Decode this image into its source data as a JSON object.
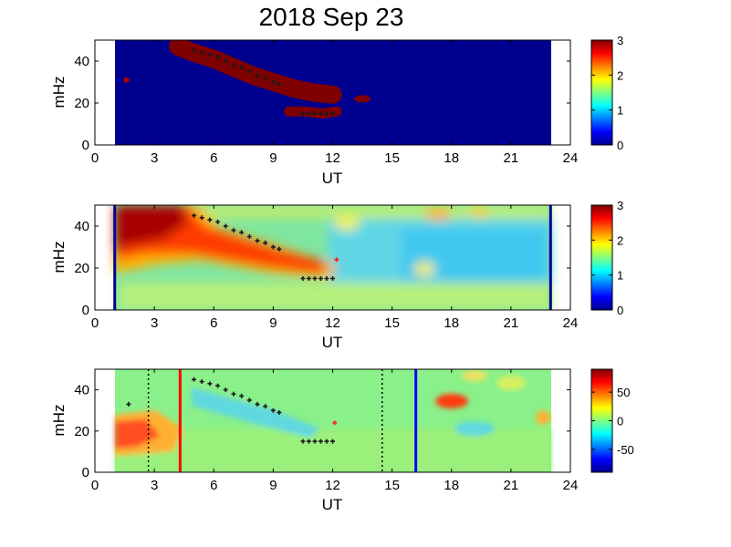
{
  "title": "2018 Sep 23",
  "chart_data": [
    {
      "type": "heatmap",
      "panel": "top",
      "xlabel": "UT",
      "ylabel": "mHz",
      "xlim": [
        0,
        24
      ],
      "ylim": [
        0,
        50
      ],
      "xticks": [
        0,
        3,
        6,
        9,
        12,
        15,
        18,
        21,
        24
      ],
      "yticks": [
        0,
        20,
        40
      ],
      "colorbar": {
        "range": [
          0,
          3
        ],
        "ticks": [
          0,
          1,
          2,
          3
        ]
      },
      "data_span_ut": [
        1.0,
        23.0
      ],
      "background_color": "#00008f",
      "features": [
        {
          "name": "main-ridge",
          "color": "#7f0000",
          "ut": [
            4.2,
            5.0,
            6.0,
            7.0,
            8.0,
            9.0,
            10.0,
            11.0,
            12.0
          ],
          "mhz": [
            47,
            44,
            41,
            37,
            33,
            30,
            27,
            25,
            24
          ]
        },
        {
          "name": "lower-blob",
          "color": "#7f0000",
          "ut": [
            9.8,
            10.5,
            11.5,
            12.2
          ],
          "mhz": [
            16,
            16,
            15,
            16
          ]
        },
        {
          "name": "small-blob",
          "color": "#7f0000",
          "ut": [
            13.5
          ],
          "mhz": [
            22
          ]
        },
        {
          "name": "early-dot",
          "color": "#b00000",
          "ut": [
            1.6
          ],
          "mhz": [
            31
          ]
        }
      ],
      "markers": {
        "color": "#1a1a1a",
        "ut": [
          5.0,
          5.4,
          5.8,
          6.2,
          6.6,
          7.0,
          7.4,
          7.8,
          8.2,
          8.6,
          9.0,
          9.3,
          10.5,
          10.8,
          11.1,
          11.4,
          11.7,
          12.0
        ],
        "mhz": [
          45,
          44,
          43,
          42,
          40,
          38,
          37,
          35,
          33,
          32,
          30,
          29,
          15,
          15,
          15,
          15,
          15,
          15
        ]
      }
    },
    {
      "type": "heatmap",
      "panel": "middle",
      "xlabel": "UT",
      "ylabel": "mHz",
      "xlim": [
        0,
        24
      ],
      "ylim": [
        0,
        50
      ],
      "xticks": [
        0,
        3,
        6,
        9,
        12,
        15,
        18,
        21,
        24
      ],
      "yticks": [
        0,
        20,
        40
      ],
      "colorbar": {
        "range": [
          0,
          3
        ],
        "ticks": [
          0,
          1,
          2,
          3
        ]
      },
      "data_span_ut": [
        1.0,
        23.0
      ],
      "boundary_lines_ut": [
        1.0,
        23.0
      ],
      "markers": {
        "color": "#1a1a1a",
        "ut": [
          5.0,
          5.4,
          5.8,
          6.2,
          6.6,
          7.0,
          7.4,
          7.8,
          8.2,
          8.6,
          9.0,
          9.3,
          10.5,
          10.8,
          11.1,
          11.4,
          11.7,
          12.0
        ],
        "mhz": [
          45,
          44,
          43,
          42,
          40,
          38,
          37,
          35,
          33,
          32,
          30,
          29,
          15,
          15,
          15,
          15,
          15,
          15
        ]
      },
      "red_markers": {
        "color": "#ff2020",
        "ut": [
          12.2
        ],
        "mhz": [
          24
        ]
      }
    },
    {
      "type": "heatmap",
      "panel": "bottom",
      "xlabel": "UT",
      "ylabel": "mHz",
      "xlim": [
        0,
        24
      ],
      "ylim": [
        0,
        50
      ],
      "xticks": [
        0,
        3,
        6,
        9,
        12,
        15,
        18,
        21,
        24
      ],
      "yticks": [
        0,
        20,
        40
      ],
      "colorbar": {
        "range": [
          -90,
          90
        ],
        "ticks": [
          50,
          0,
          -50
        ]
      },
      "data_span_ut": [
        1.0,
        23.0
      ],
      "vertical_lines": [
        {
          "ut": 2.7,
          "style": "dotted",
          "color": "#000000"
        },
        {
          "ut": 4.3,
          "style": "solid",
          "color": "#ff0000"
        },
        {
          "ut": 14.5,
          "style": "dotted",
          "color": "#000000"
        },
        {
          "ut": 16.2,
          "style": "solid",
          "color": "#0000ff"
        }
      ],
      "markers": {
        "color": "#1a1a1a",
        "ut": [
          1.7,
          5.0,
          5.4,
          5.8,
          6.2,
          6.6,
          7.0,
          7.4,
          7.8,
          8.2,
          8.6,
          9.0,
          9.3,
          10.5,
          10.8,
          11.1,
          11.4,
          11.7,
          12.0
        ],
        "mhz": [
          33,
          45,
          44,
          43,
          42,
          40,
          38,
          37,
          35,
          33,
          32,
          30,
          29,
          15,
          15,
          15,
          15,
          15,
          15
        ]
      },
      "red_markers": {
        "color": "#ff2020",
        "ut": [
          12.1
        ],
        "mhz": [
          24
        ]
      }
    }
  ]
}
